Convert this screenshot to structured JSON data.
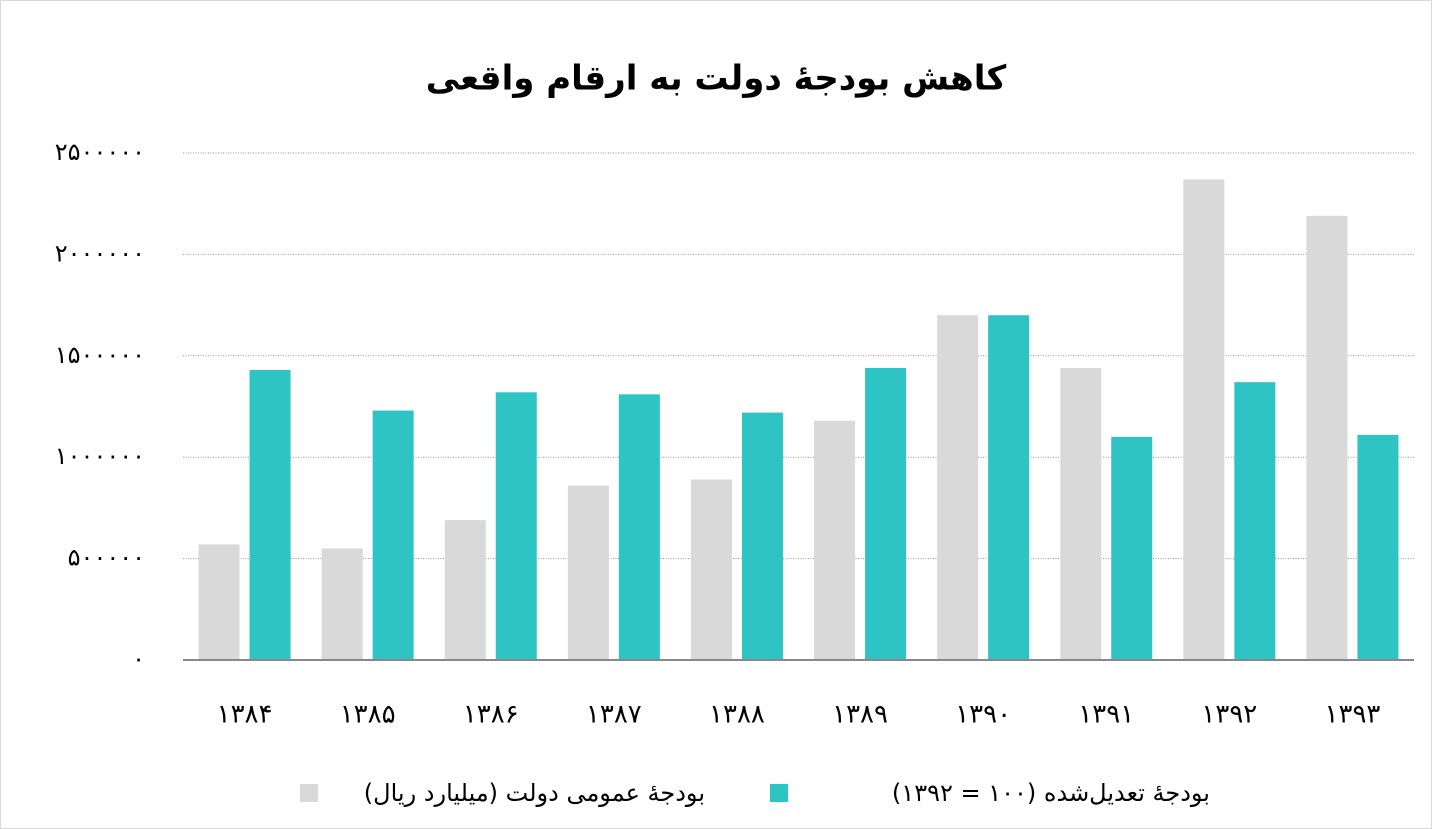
{
  "chart_data": {
    "type": "bar",
    "title": "کاهش بودجهٔ دولت به ارقام واقعی",
    "categories": [
      "۱۳۸۴",
      "۱۳۸۵",
      "۱۳۸۶",
      "۱۳۸۷",
      "۱۳۸۸",
      "۱۳۸۹",
      "۱۳۹۰",
      "۱۳۹۱",
      "۱۳۹۲",
      "۱۳۹۳"
    ],
    "series": [
      {
        "name": "بودجهٔ عمومی دولت (میلیارد ریال)",
        "color": "#d9d9d9",
        "values": [
          570000,
          550000,
          690000,
          860000,
          890000,
          1180000,
          1700000,
          1440000,
          2370000,
          2190000
        ]
      },
      {
        "name": "بودجهٔ تعدیل‌شده (۱۰۰ = ۱۳۹۲)",
        "color": "#2ec4c4",
        "values": [
          1430000,
          1230000,
          1320000,
          1310000,
          1220000,
          1440000,
          1700000,
          1100000,
          1370000,
          1110000
        ]
      }
    ],
    "ylim": [
      0,
      2500000
    ],
    "yticks": [
      {
        "value": 0,
        "label": "۰"
      },
      {
        "value": 500000,
        "label": "۵۰۰۰۰۰"
      },
      {
        "value": 1000000,
        "label": "۱۰۰۰۰۰۰"
      },
      {
        "value": 1500000,
        "label": "۱۵۰۰۰۰۰"
      },
      {
        "value": 2000000,
        "label": "۲۰۰۰۰۰۰"
      },
      {
        "value": 2500000,
        "label": "۲۵۰۰۰۰۰"
      }
    ],
    "grid": true,
    "legend": "bottom"
  }
}
